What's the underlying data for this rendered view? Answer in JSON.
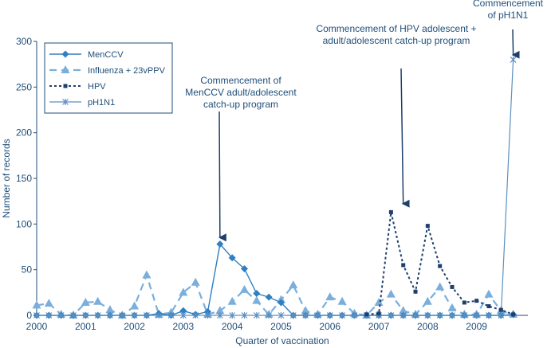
{
  "chart_data": {
    "type": "line",
    "xlabel": "Quarter of vaccination",
    "ylabel": "Number of records",
    "ylim": [
      0,
      300
    ],
    "yticks": [
      "0",
      "50",
      "100",
      "150",
      "200",
      "250",
      "300"
    ],
    "xlim": [
      0,
      10.05
    ],
    "xticks": [
      "2000",
      "2001",
      "2002",
      "2003",
      "2004",
      "2005",
      "2006",
      "2007",
      "2008",
      "2009"
    ],
    "grid": false,
    "legend_position": "top-left",
    "colors": {
      "axis": "#1f4e79",
      "menccv": "#2f7fc1",
      "influenza": "#7aaedc",
      "hpv": "#1f3f6b",
      "ph1n1": "#5c8fbf",
      "arrow": "#1f3f6b"
    },
    "series": [
      {
        "name": "MenCCV",
        "marker": "diamond",
        "line": "solid",
        "x": [
          0,
          0.25,
          0.5,
          0.75,
          1,
          1.25,
          1.5,
          1.75,
          2,
          2.25,
          2.5,
          2.75,
          3,
          3.25,
          3.5,
          3.75,
          4,
          4.25,
          4.5,
          4.75,
          5,
          5.25,
          5.5,
          5.75,
          6,
          6.25,
          6.5,
          6.75,
          7,
          7.25,
          7.5,
          7.75,
          8,
          8.25,
          8.5,
          8.75,
          9,
          9.25,
          9.5,
          9.75
        ],
        "values": [
          0,
          0,
          0,
          0,
          0,
          0,
          0,
          0,
          0,
          0,
          2,
          0,
          5,
          1,
          4,
          78,
          63,
          51,
          24,
          20,
          14,
          0,
          0,
          0,
          0,
          0,
          0,
          0,
          0,
          0,
          0,
          0,
          0,
          0,
          0,
          0,
          0,
          0,
          0,
          1
        ]
      },
      {
        "name": "Influenza + 23vPPV",
        "marker": "triangle",
        "line": "dashed",
        "x": [
          0,
          0.25,
          0.5,
          0.75,
          1,
          1.25,
          1.5,
          1.75,
          2,
          2.25,
          2.5,
          2.75,
          3,
          3.25,
          3.5,
          3.75,
          4,
          4.25,
          4.5,
          4.75,
          5,
          5.25,
          5.5,
          5.75,
          6,
          6.25,
          6.5,
          6.75,
          7,
          7.25,
          7.5,
          7.75,
          8,
          8.25,
          8.5,
          8.75,
          9,
          9.25,
          9.5,
          9.75
        ],
        "values": [
          11,
          13,
          1,
          0,
          14,
          15,
          6,
          0,
          10,
          44,
          1,
          3,
          25,
          36,
          1,
          5,
          15,
          28,
          16,
          1,
          17,
          33,
          5,
          1,
          20,
          15,
          2,
          0,
          14,
          23,
          5,
          1,
          15,
          31,
          8,
          1,
          1,
          23,
          5,
          1
        ]
      },
      {
        "name": "HPV",
        "marker": "square",
        "line": "dotted",
        "x": [
          6.75,
          7,
          7.25,
          7.5,
          7.75,
          8,
          8.25,
          8.5,
          8.75,
          9,
          9.25,
          9.5,
          9.75
        ],
        "values": [
          1,
          2,
          113,
          55,
          26,
          98,
          54,
          31,
          14,
          16,
          10,
          6,
          1
        ]
      },
      {
        "name": "pH1N1",
        "marker": "star",
        "line": "solid",
        "x": [
          0,
          0.25,
          0.5,
          0.75,
          1,
          1.25,
          1.5,
          1.75,
          2,
          2.25,
          2.5,
          2.75,
          3,
          3.25,
          3.5,
          3.75,
          4,
          4.25,
          4.5,
          4.75,
          5,
          5.25,
          5.5,
          5.75,
          6,
          6.25,
          6.5,
          6.75,
          7,
          7.25,
          7.5,
          7.75,
          8,
          8.25,
          8.5,
          8.75,
          9,
          9.25,
          9.5,
          9.75
        ],
        "values": [
          0,
          0,
          0,
          0,
          0,
          0,
          0,
          0,
          0,
          0,
          0,
          0,
          0,
          0,
          0,
          0,
          0,
          0,
          0,
          0,
          0,
          0,
          0,
          0,
          0,
          0,
          0,
          0,
          0,
          0,
          0,
          0,
          0,
          0,
          0,
          0,
          0,
          0,
          0,
          280
        ]
      }
    ],
    "annotations": [
      {
        "lines": [
          "Commencement of",
          "MenCCV adult/adolescent",
          "catch-up program"
        ],
        "point_x": 3.75,
        "point_y": 80
      },
      {
        "lines": [
          "Commencement of HPV adolescent +",
          "adult/adolescent catch-up program"
        ],
        "point_x": 7.5,
        "point_y": 117
      },
      {
        "lines": [
          "Commencement",
          "of pH1N1"
        ],
        "point_x": 9.75,
        "point_y": 280
      }
    ]
  }
}
